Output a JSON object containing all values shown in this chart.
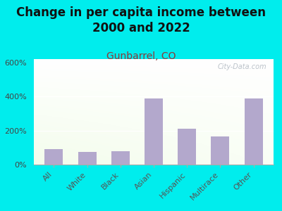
{
  "title": "Change in per capita income between\n2000 and 2022",
  "subtitle": "Gunbarrel, CO",
  "categories": [
    "All",
    "White",
    "Black",
    "Asian",
    "Hispanic",
    "Multirace",
    "Other"
  ],
  "values": [
    90,
    75,
    80,
    390,
    210,
    165,
    390
  ],
  "bar_color": "#b3a8cc",
  "background_color": "#00EDED",
  "title_fontsize": 12,
  "subtitle_fontsize": 10,
  "subtitle_color": "#8b3a3a",
  "title_color": "#111111",
  "ylim": [
    0,
    620
  ],
  "yticks": [
    0,
    200,
    400,
    600
  ],
  "ytick_labels": [
    "0%",
    "200%",
    "400%",
    "600%"
  ],
  "watermark": "City-Data.com",
  "plot_bg_colors": [
    "#d8ecb8",
    "#f0f8e8",
    "#f8fdf4",
    "#ffffff"
  ],
  "watermark_color": "#b0b8c0"
}
